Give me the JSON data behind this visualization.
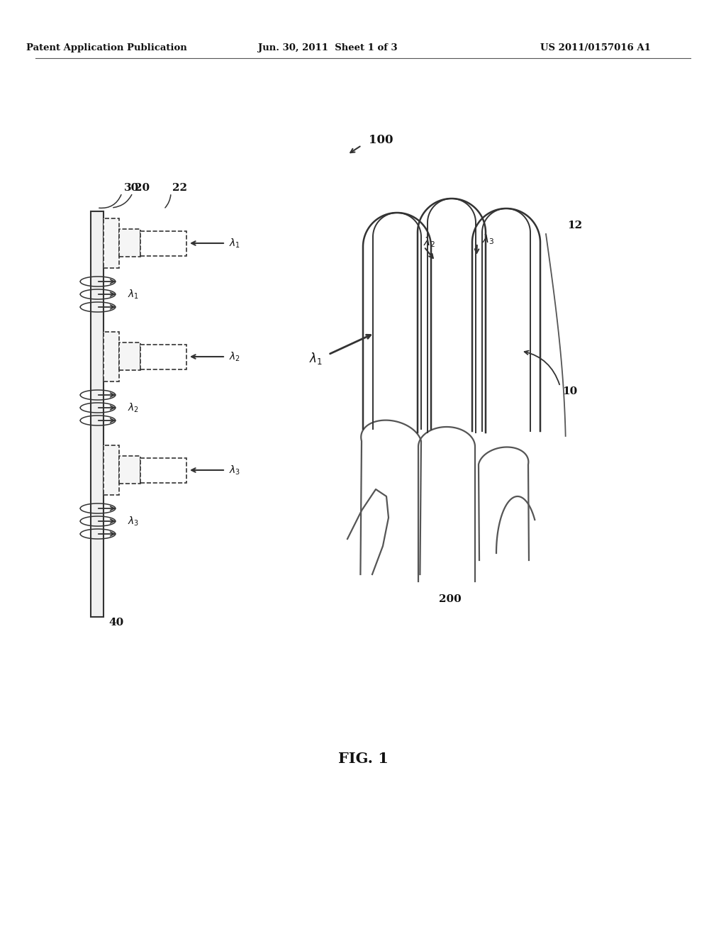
{
  "bg_color": "#ffffff",
  "header_left": "Patent Application Publication",
  "header_center": "Jun. 30, 2011  Sheet 1 of 3",
  "header_right": "US 2011/0157016 A1",
  "fig_label": "FIG. 1",
  "ref_100": "100",
  "ref_200": "200",
  "ref_10": "10",
  "ref_12": "12",
  "ref_30": "30",
  "ref_20": "20",
  "ref_22": "22",
  "ref_40": "40",
  "line_color": "#333333",
  "bg_gray": "#e8e8e8"
}
